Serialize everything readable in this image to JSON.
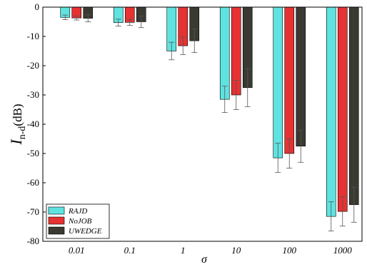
{
  "chart_data": {
    "type": "bar",
    "categories": [
      "0.01",
      "0.1",
      "1",
      "10",
      "100",
      "1000"
    ],
    "series": [
      {
        "name": "RAJD",
        "values": [
          -3.5,
          -5.3,
          -15.0,
          -31.5,
          -51.5,
          -71.5
        ],
        "errors": [
          0.8,
          1.2,
          3.0,
          4.5,
          5.0,
          5.0
        ],
        "color": "#5fe3e0"
      },
      {
        "name": "NoJOB",
        "values": [
          -3.7,
          -5.2,
          -13.2,
          -30.0,
          -50.0,
          -69.8
        ],
        "errors": [
          0.7,
          1.0,
          3.0,
          5.0,
          5.0,
          5.0
        ],
        "color": "#e63232"
      },
      {
        "name": "UWEDGE",
        "values": [
          -3.8,
          -5.0,
          -11.5,
          -27.5,
          -47.5,
          -67.5
        ],
        "errors": [
          1.2,
          2.0,
          4.0,
          6.5,
          5.5,
          6.0
        ],
        "color": "#3a3a33"
      }
    ],
    "ylim": [
      -80,
      0
    ],
    "yticks": [
      0,
      -10,
      -20,
      -30,
      -40,
      -50,
      -60,
      -70,
      -80
    ],
    "xlabel": "σ",
    "ylabel_main": "I",
    "ylabel_sub": "n-d",
    "ylabel_unit": "(dB)",
    "legend_position": "bottom-left",
    "grid": false
  }
}
